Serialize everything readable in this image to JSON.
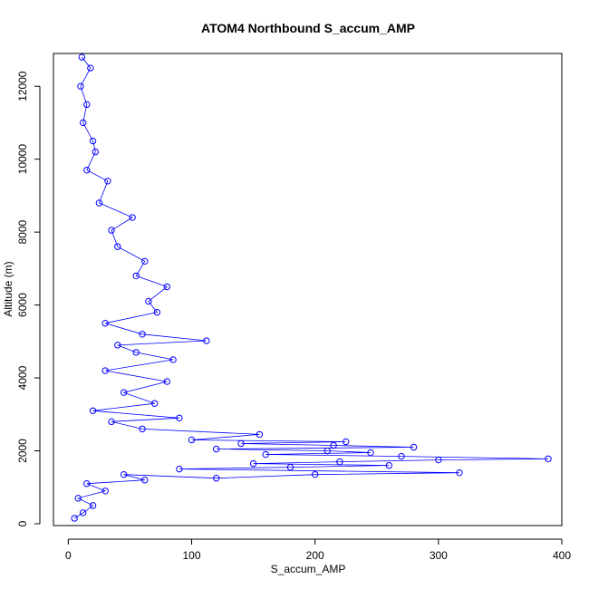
{
  "chart_data": {
    "type": "scatter",
    "title": "ATOM4 Northbound S_accum_AMP",
    "xlabel": "S_accum_AMP",
    "ylabel": "Altitude (m)",
    "xlim": [
      -12,
      400
    ],
    "ylim": [
      -50,
      12900
    ],
    "xticks": [
      "0",
      "100",
      "200",
      "300",
      "400"
    ],
    "xtick_values": [
      0,
      100,
      200,
      300,
      400
    ],
    "yticks": [
      "0",
      "2000",
      "4000",
      "6000",
      "8000",
      "10000",
      "12000"
    ],
    "ytick_values": [
      0,
      2000,
      4000,
      6000,
      8000,
      10000,
      12000
    ],
    "grid": false,
    "marker": "open-circle",
    "connected": true,
    "color": "#0000ff",
    "series": [
      {
        "points": [
          [
            5,
            150
          ],
          [
            12,
            300
          ],
          [
            20,
            500
          ],
          [
            8,
            700
          ],
          [
            30,
            900
          ],
          [
            15,
            1100
          ],
          [
            62,
            1200
          ],
          [
            45,
            1350
          ],
          [
            120,
            1250
          ],
          [
            200,
            1350
          ],
          [
            317,
            1400
          ],
          [
            90,
            1500
          ],
          [
            180,
            1550
          ],
          [
            260,
            1600
          ],
          [
            150,
            1650
          ],
          [
            220,
            1700
          ],
          [
            300,
            1750
          ],
          [
            389,
            1780
          ],
          [
            270,
            1850
          ],
          [
            160,
            1900
          ],
          [
            245,
            1950
          ],
          [
            210,
            2000
          ],
          [
            120,
            2050
          ],
          [
            280,
            2100
          ],
          [
            215,
            2150
          ],
          [
            140,
            2200
          ],
          [
            225,
            2250
          ],
          [
            100,
            2300
          ],
          [
            155,
            2450
          ],
          [
            60,
            2600
          ],
          [
            35,
            2800
          ],
          [
            90,
            2900
          ],
          [
            20,
            3100
          ],
          [
            70,
            3300
          ],
          [
            45,
            3600
          ],
          [
            80,
            3900
          ],
          [
            30,
            4200
          ],
          [
            85,
            4500
          ],
          [
            55,
            4700
          ],
          [
            40,
            4900
          ],
          [
            112,
            5020
          ],
          [
            60,
            5200
          ],
          [
            30,
            5500
          ],
          [
            72,
            5800
          ],
          [
            65,
            6100
          ],
          [
            80,
            6500
          ],
          [
            55,
            6800
          ],
          [
            62,
            7200
          ],
          [
            40,
            7600
          ],
          [
            35,
            8050
          ],
          [
            52,
            8400
          ],
          [
            25,
            8800
          ],
          [
            32,
            9400
          ],
          [
            15,
            9700
          ],
          [
            22,
            10200
          ],
          [
            20,
            10500
          ],
          [
            12,
            11000
          ],
          [
            15,
            11500
          ],
          [
            10,
            12000
          ],
          [
            18,
            12500
          ],
          [
            11,
            12800
          ]
        ]
      }
    ]
  }
}
